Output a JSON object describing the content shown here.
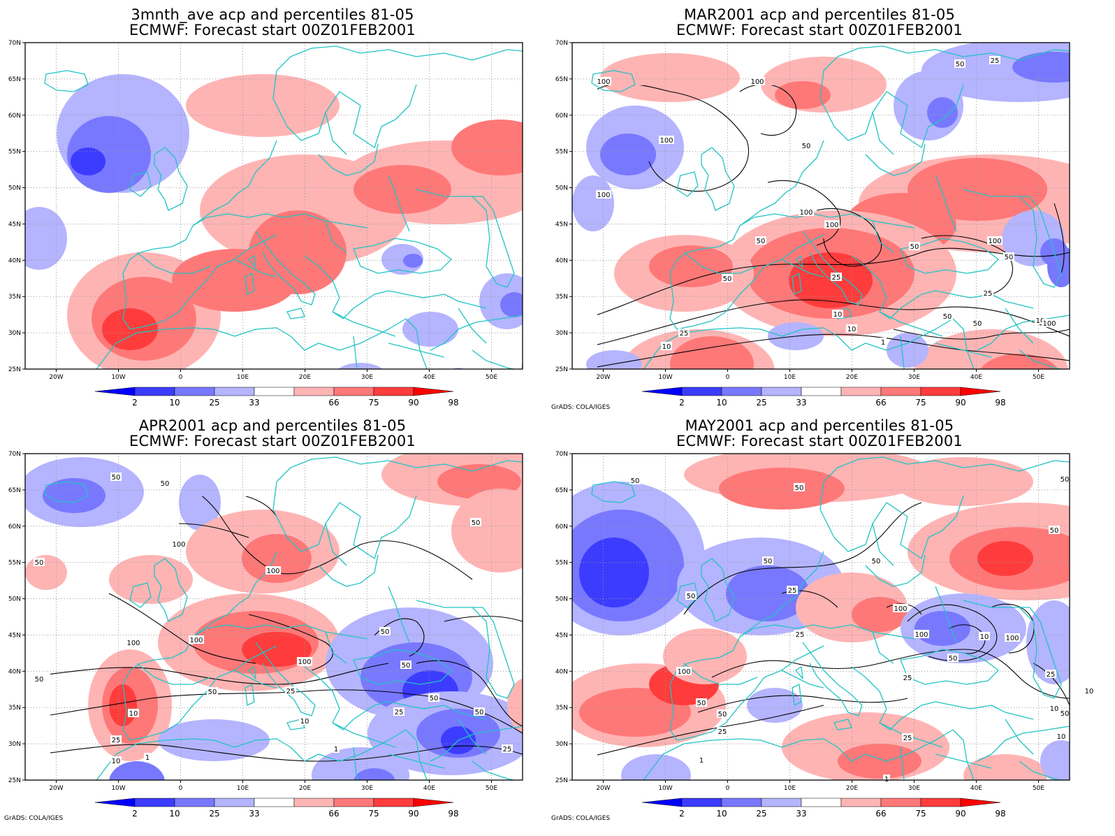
{
  "panels": [
    {
      "title1": "3mnth_ave acp and percentiles 81-05",
      "title2": "ECMWF: Forecast start 00Z01FEB2001",
      "footer": ""
    },
    {
      "title1": "MAR2001 acp and percentiles 81-05",
      "title2": "ECMWF: Forecast start 00Z01FEB2001",
      "footer": "GrADS: COLA/IGES"
    },
    {
      "title1": "APR2001 acp and percentiles 81-05",
      "title2": "ECMWF: Forecast start 00Z01FEB2001",
      "footer": "GrADS: COLA/IGES"
    },
    {
      "title1": "MAY2001 acp and percentiles 81-05",
      "title2": "ECMWF: Forecast start 00Z01FEB2001",
      "footer": "GrADS: COLA/IGES"
    }
  ],
  "axes": {
    "lat_labels": [
      "70N",
      "65N",
      "60N",
      "55N",
      "50N",
      "45N",
      "40N",
      "35N",
      "30N",
      "25N"
    ],
    "lon_labels": [
      "20W",
      "10W",
      "0",
      "10E",
      "20E",
      "30E",
      "40E",
      "50E"
    ],
    "lon_range": [
      -25,
      55
    ],
    "lat_range": [
      25,
      70
    ]
  },
  "colorbar": {
    "labels": [
      "2",
      "10",
      "25",
      "33",
      "66",
      "75",
      "90",
      "98"
    ],
    "colors": [
      "#0000ff",
      "#3c3cff",
      "#7878ff",
      "#b4b4ff",
      "#ffffff",
      "#ffb4b4",
      "#ff7878",
      "#ff3c3c",
      "#ff0000"
    ]
  },
  "contour_labels": [
    [],
    [
      "50",
      "25",
      "100",
      "100",
      "100",
      "50",
      "100",
      "100",
      "100",
      "50",
      "100",
      "50",
      "50",
      "50",
      "25",
      "10",
      "25",
      "10",
      "1",
      "50",
      "10",
      "50",
      "10",
      "100",
      "25"
    ],
    [
      "50",
      "50",
      "50",
      "100",
      "50",
      "100",
      "100",
      "100",
      "25",
      "50",
      "100",
      "50",
      "25",
      "50",
      "50",
      "25",
      "10",
      "10",
      "50",
      "25",
      "10",
      "1",
      "1",
      "50",
      "25",
      "1"
    ],
    [
      "50",
      "50",
      "50",
      "50",
      "50",
      "50",
      "50",
      "25",
      "100",
      "100",
      "25",
      "100",
      "50",
      "25",
      "50",
      "10",
      "25",
      "10",
      "50",
      "100",
      "50",
      "10",
      "25",
      "1",
      "1",
      "25",
      "10"
    ]
  ],
  "colors": {
    "coast": "#22c3c3",
    "contour": "#000000",
    "grid": "#9a9a9a"
  }
}
